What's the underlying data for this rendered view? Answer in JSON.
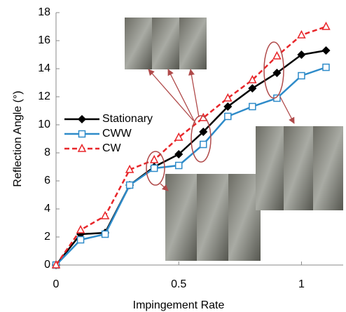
{
  "chart_data": {
    "type": "line",
    "x_label": "Impingement Rate",
    "y_label": "Reflection Angle (°)",
    "x": [
      0,
      0.1,
      0.2,
      0.3,
      0.4,
      0.5,
      0.6,
      0.7,
      0.8,
      0.9,
      1.0,
      1.1
    ],
    "series": [
      {
        "name": "Stationary",
        "color": "#000000",
        "marker": "diamond",
        "line_style": "solid",
        "values": [
          0,
          2.2,
          2.3,
          5.7,
          7.0,
          7.9,
          9.5,
          11.3,
          12.6,
          13.7,
          15.0,
          15.3
        ]
      },
      {
        "name": "CWW",
        "color": "#2e8bc9",
        "marker": "square",
        "line_style": "solid",
        "values": [
          0,
          1.8,
          2.2,
          5.7,
          6.9,
          7.1,
          8.6,
          10.6,
          11.3,
          11.9,
          13.5,
          14.1
        ]
      },
      {
        "name": "CW",
        "color": "#e8262a",
        "marker": "triangle",
        "line_style": "dashed",
        "values": [
          0,
          2.5,
          3.5,
          6.8,
          7.5,
          9.1,
          10.5,
          11.9,
          13.2,
          14.9,
          16.4,
          17.0
        ]
      }
    ],
    "xlim": [
      0,
      1.17
    ],
    "xticks": [
      0,
      0.5,
      1
    ],
    "ylim": [
      0,
      18
    ],
    "yticks": [
      0,
      2,
      4,
      6,
      8,
      10,
      12,
      14,
      16,
      18
    ],
    "legend": "left"
  }
}
